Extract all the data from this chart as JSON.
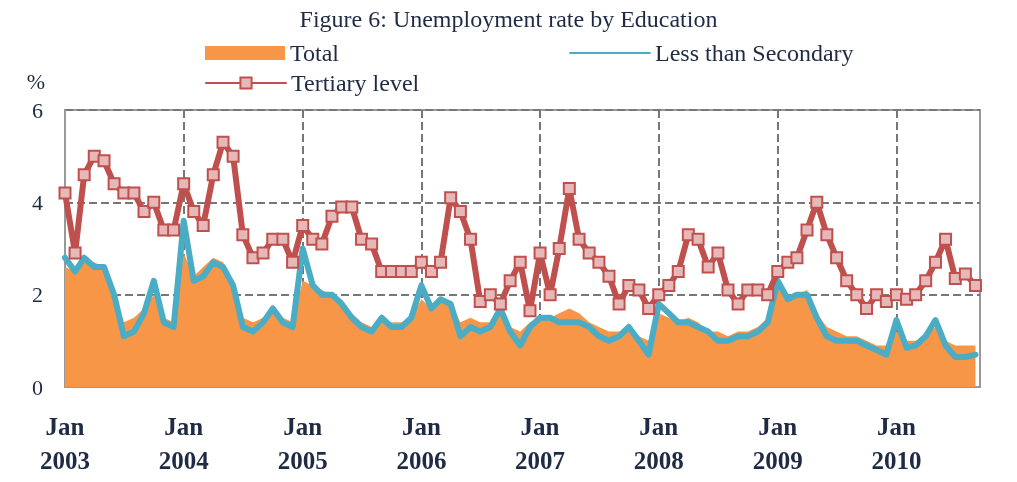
{
  "chart_data": {
    "type": "line",
    "title": "Figure 6: Unemployment rate by Education",
    "ylabel": "%",
    "x": [
      "2003-01",
      "2003-02",
      "2003-03",
      "2003-04",
      "2003-05",
      "2003-06",
      "2003-07",
      "2003-08",
      "2003-09",
      "2003-10",
      "2003-11",
      "2003-12",
      "2004-01",
      "2004-02",
      "2004-03",
      "2004-04",
      "2004-05",
      "2004-06",
      "2004-07",
      "2004-08",
      "2004-09",
      "2004-10",
      "2004-11",
      "2004-12",
      "2005-01",
      "2005-02",
      "2005-03",
      "2005-04",
      "2005-05",
      "2005-06",
      "2005-07",
      "2005-08",
      "2005-09",
      "2005-10",
      "2005-11",
      "2005-12",
      "2006-01",
      "2006-02",
      "2006-03",
      "2006-04",
      "2006-05",
      "2006-06",
      "2006-07",
      "2006-08",
      "2006-09",
      "2006-10",
      "2006-11",
      "2006-12",
      "2007-01",
      "2007-02",
      "2007-03",
      "2007-04",
      "2007-05",
      "2007-06",
      "2007-07",
      "2007-08",
      "2007-09",
      "2007-10",
      "2007-11",
      "2007-12",
      "2008-01",
      "2008-02",
      "2008-03",
      "2008-04",
      "2008-05",
      "2008-06",
      "2008-07",
      "2008-08",
      "2008-09",
      "2008-10",
      "2008-11",
      "2008-12",
      "2009-01",
      "2009-02",
      "2009-03",
      "2009-04",
      "2009-05",
      "2009-06",
      "2009-07",
      "2009-08",
      "2009-09",
      "2009-10",
      "2009-11",
      "2009-12",
      "2010-01",
      "2010-02",
      "2010-03",
      "2010-04",
      "2010-05",
      "2010-06",
      "2010-07",
      "2010-08",
      "2010-09"
    ],
    "series": [
      {
        "name": "Total",
        "type": "area",
        "color": "#f79646",
        "values": [
          2.6,
          2.5,
          2.7,
          2.7,
          2.6,
          2.0,
          1.4,
          1.5,
          1.7,
          2.0,
          1.5,
          1.4,
          2.9,
          2.4,
          2.6,
          2.8,
          2.7,
          2.3,
          1.5,
          1.4,
          1.5,
          1.6,
          1.5,
          1.4,
          2.3,
          2.2,
          2.1,
          2.0,
          1.9,
          1.6,
          1.4,
          1.3,
          1.4,
          1.4,
          1.4,
          1.5,
          1.9,
          1.7,
          1.9,
          1.8,
          1.4,
          1.5,
          1.4,
          1.4,
          1.6,
          1.3,
          1.2,
          1.4,
          1.5,
          1.5,
          1.6,
          1.7,
          1.6,
          1.4,
          1.3,
          1.2,
          1.2,
          1.3,
          1.1,
          1.0,
          1.6,
          1.5,
          1.4,
          1.5,
          1.4,
          1.2,
          1.2,
          1.1,
          1.2,
          1.2,
          1.3,
          1.5,
          2.2,
          2.0,
          2.0,
          2.1,
          1.6,
          1.3,
          1.2,
          1.1,
          1.1,
          1.0,
          0.9,
          0.9,
          1.2,
          1.0,
          1.0,
          1.1,
          1.3,
          1.0,
          0.9,
          0.9,
          0.9
        ]
      },
      {
        "name": "Less than Secondary",
        "marker": "none",
        "color": "#4bacc6",
        "values": [
          2.8,
          2.5,
          2.8,
          2.6,
          2.6,
          2.0,
          1.1,
          1.2,
          1.6,
          2.3,
          1.4,
          1.3,
          3.6,
          2.3,
          2.4,
          2.7,
          2.6,
          2.2,
          1.3,
          1.2,
          1.4,
          1.7,
          1.4,
          1.3,
          3.0,
          2.2,
          2.0,
          2.0,
          1.8,
          1.5,
          1.3,
          1.2,
          1.5,
          1.3,
          1.3,
          1.5,
          2.2,
          1.7,
          1.9,
          1.8,
          1.1,
          1.3,
          1.2,
          1.3,
          1.7,
          1.2,
          0.9,
          1.3,
          1.5,
          1.5,
          1.4,
          1.4,
          1.4,
          1.3,
          1.1,
          1.0,
          1.1,
          1.3,
          1.0,
          0.7,
          1.8,
          1.6,
          1.4,
          1.4,
          1.3,
          1.2,
          1.0,
          1.0,
          1.1,
          1.1,
          1.2,
          1.4,
          2.3,
          1.9,
          2.0,
          2.0,
          1.5,
          1.1,
          1.0,
          1.0,
          1.0,
          0.9,
          0.8,
          0.7,
          1.45,
          0.85,
          0.9,
          1.1,
          1.45,
          0.9,
          0.65,
          0.65,
          0.7
        ]
      },
      {
        "name": "Tertiary level",
        "marker": "square",
        "color": "#c0504d",
        "values": [
          4.2,
          2.9,
          4.6,
          5.0,
          4.9,
          4.4,
          4.2,
          4.2,
          3.8,
          4.0,
          3.4,
          3.4,
          4.4,
          3.8,
          3.5,
          4.6,
          5.3,
          5.0,
          3.3,
          2.8,
          2.9,
          3.2,
          3.2,
          2.7,
          3.5,
          3.2,
          3.1,
          3.7,
          3.9,
          3.9,
          3.2,
          3.1,
          2.5,
          2.5,
          2.5,
          2.5,
          2.7,
          2.5,
          2.7,
          4.1,
          3.8,
          3.2,
          1.85,
          2.0,
          1.8,
          2.3,
          2.7,
          1.65,
          2.9,
          2.0,
          3.0,
          4.3,
          3.2,
          2.9,
          2.7,
          2.4,
          1.8,
          2.2,
          2.1,
          1.7,
          2.0,
          2.2,
          2.5,
          3.3,
          3.2,
          2.6,
          2.9,
          2.1,
          1.8,
          2.1,
          2.1,
          2.0,
          2.5,
          2.7,
          2.8,
          3.4,
          4.0,
          3.3,
          2.8,
          2.3,
          2.0,
          1.7,
          2.0,
          1.85,
          2.0,
          1.9,
          2.0,
          2.3,
          2.7,
          3.2,
          2.35,
          2.45,
          2.2
        ]
      }
    ],
    "xlim": [
      "2003-01",
      "2010-09-15"
    ],
    "xticks": [
      {
        "value": "2003-01",
        "label": "Jan 2003"
      },
      {
        "value": "2004-01",
        "label": "Jan 2004"
      },
      {
        "value": "2005-01",
        "label": "Jan 2005"
      },
      {
        "value": "2006-01",
        "label": "Jan 2006"
      },
      {
        "value": "2007-01",
        "label": "Jan 2007"
      },
      {
        "value": "2008-01",
        "label": "Jan 2008"
      },
      {
        "value": "2009-01",
        "label": "Jan 2009"
      },
      {
        "value": "2010-01",
        "label": "Jan 2010"
      }
    ],
    "ylim": [
      0,
      6
    ],
    "yticks": [
      0,
      2,
      4,
      6
    ],
    "grid": true,
    "legend": "top"
  }
}
